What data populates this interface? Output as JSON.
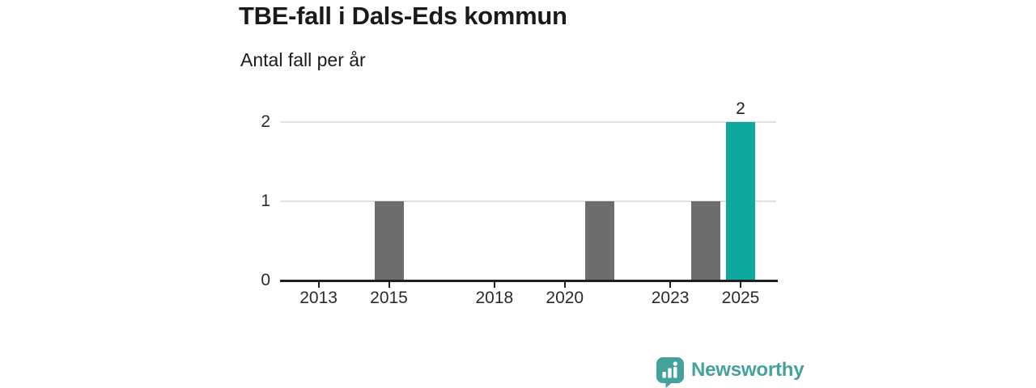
{
  "header": {
    "title": "TBE-fall i Dals-Eds kommun",
    "subtitle": "Antal fall per år"
  },
  "chart_data": {
    "type": "bar",
    "title": "TBE-fall i Dals-Eds kommun",
    "subtitle": "Antal fall per år",
    "ylabel": "Antal fall per år",
    "xlabel": "",
    "categories": [
      2012,
      2013,
      2014,
      2015,
      2016,
      2017,
      2018,
      2019,
      2020,
      2021,
      2022,
      2023,
      2024,
      2025
    ],
    "values": [
      0,
      0,
      0,
      1,
      0,
      0,
      0,
      0,
      0,
      1,
      0,
      0,
      1,
      2
    ],
    "ylim": [
      0,
      2
    ],
    "y_ticks": [
      0,
      1,
      2
    ],
    "y_tick_labels": [
      "0",
      "1",
      "2"
    ],
    "x_tick_years": [
      2013,
      2015,
      2018,
      2020,
      2023,
      2025
    ],
    "x_tick_labels": [
      "2013",
      "2015",
      "2018",
      "2020",
      "2023",
      "2025"
    ],
    "grid": "horizontal-only",
    "legend": "none",
    "highlight_year": 2025,
    "data_label": {
      "year": 2025,
      "value": 2,
      "text": "2"
    },
    "bar_color": "#6d6d70",
    "highlight_color": "#0da89e"
  },
  "footer": {
    "brand_name": "Newsworthy",
    "logo_icon": "bar-chart-speech-bubble-icon",
    "brand_color": "#45a19c"
  },
  "colors": {
    "background": "#ffffff",
    "title_text": "#1a1a1a",
    "axis_text": "#2b2b2b",
    "axis_line": "#1f1f1f",
    "gridline": "#e0e0e0",
    "bar_gray": "#6d6d70",
    "bar_teal": "#0da89e",
    "logo_teal": "#45a19c"
  }
}
